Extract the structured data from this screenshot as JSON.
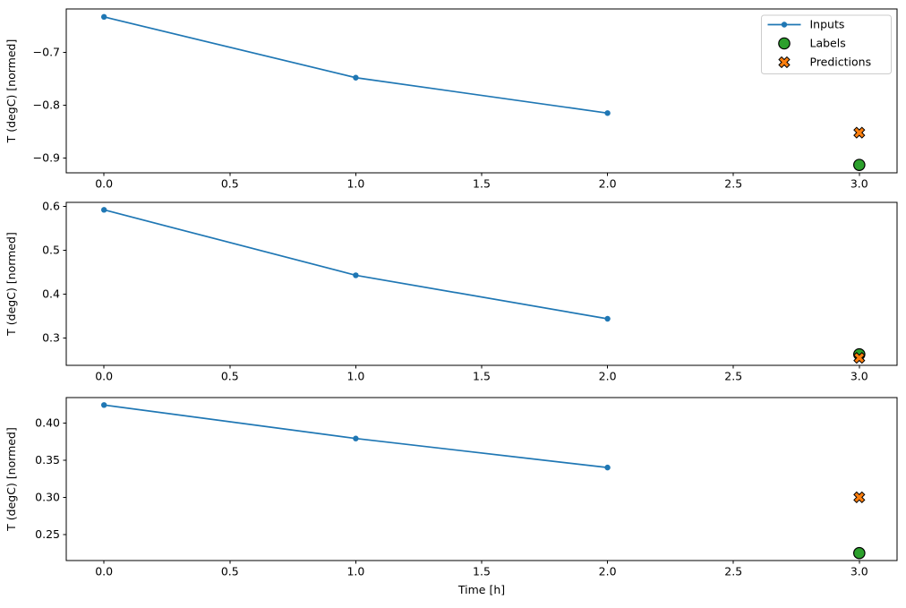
{
  "figure": {
    "xlabel": "Time [h]",
    "background": "#ffffff",
    "colors": {
      "inputs": "#1f77b4",
      "labels_fill": "#2ca02c",
      "predictions_fill": "#ff7f0e",
      "marker_edge": "#000000",
      "axis": "#000000",
      "legend_edge": "#cccccc",
      "legend_fill": "#ffffff"
    },
    "legend": {
      "position": "upper-right",
      "entries": [
        {
          "label": "Inputs",
          "marker": "line-dot"
        },
        {
          "label": "Labels",
          "marker": "circle"
        },
        {
          "label": "Predictions",
          "marker": "x"
        }
      ]
    }
  },
  "chart_data": [
    {
      "type": "line",
      "ylabel": "T (degC) [normed]",
      "xlim": [
        -0.15,
        3.15
      ],
      "ylim": [
        -0.928,
        -0.618
      ],
      "xticks": {
        "values": [
          0.0,
          0.5,
          1.0,
          1.5,
          2.0,
          2.5,
          3.0
        ],
        "labels": [
          "0.0",
          "0.5",
          "1.0",
          "1.5",
          "2.0",
          "2.5",
          "3.0"
        ]
      },
      "yticks": {
        "values": [
          -0.7,
          -0.8,
          -0.9
        ],
        "labels": [
          "−0.7",
          "−0.8",
          "−0.9"
        ]
      },
      "series": [
        {
          "name": "Inputs",
          "kind": "line-dot",
          "x": [
            0,
            1,
            2
          ],
          "y": [
            -0.633,
            -0.748,
            -0.815
          ]
        },
        {
          "name": "Labels",
          "kind": "circle",
          "x": [
            3
          ],
          "y": [
            -0.913
          ]
        },
        {
          "name": "Predictions",
          "kind": "x",
          "x": [
            3
          ],
          "y": [
            -0.852
          ]
        }
      ],
      "show_legend": true,
      "show_xlabel": false
    },
    {
      "type": "line",
      "ylabel": "T (degC) [normed]",
      "xlim": [
        -0.15,
        3.15
      ],
      "ylim": [
        0.238,
        0.609
      ],
      "xticks": {
        "values": [
          0.0,
          0.5,
          1.0,
          1.5,
          2.0,
          2.5,
          3.0
        ],
        "labels": [
          "0.0",
          "0.5",
          "1.0",
          "1.5",
          "2.0",
          "2.5",
          "3.0"
        ]
      },
      "yticks": {
        "values": [
          0.3,
          0.4,
          0.5,
          0.6
        ],
        "labels": [
          "0.3",
          "0.4",
          "0.5",
          "0.6"
        ]
      },
      "series": [
        {
          "name": "Inputs",
          "kind": "line-dot",
          "x": [
            0,
            1,
            2
          ],
          "y": [
            0.592,
            0.443,
            0.344
          ]
        },
        {
          "name": "Labels",
          "kind": "circle",
          "x": [
            3
          ],
          "y": [
            0.263
          ]
        },
        {
          "name": "Predictions",
          "kind": "x",
          "x": [
            3
          ],
          "y": [
            0.255
          ]
        }
      ],
      "show_legend": false,
      "show_xlabel": false
    },
    {
      "type": "line",
      "ylabel": "T (degC) [normed]",
      "xlim": [
        -0.15,
        3.15
      ],
      "ylim": [
        0.215,
        0.434
      ],
      "xticks": {
        "values": [
          0.0,
          0.5,
          1.0,
          1.5,
          2.0,
          2.5,
          3.0
        ],
        "labels": [
          "0.0",
          "0.5",
          "1.0",
          "1.5",
          "2.0",
          "2.5",
          "3.0"
        ]
      },
      "yticks": {
        "values": [
          0.25,
          0.3,
          0.35,
          0.4
        ],
        "labels": [
          "0.25",
          "0.30",
          "0.35",
          "0.40"
        ]
      },
      "series": [
        {
          "name": "Inputs",
          "kind": "line-dot",
          "x": [
            0,
            1,
            2
          ],
          "y": [
            0.424,
            0.379,
            0.34
          ]
        },
        {
          "name": "Labels",
          "kind": "circle",
          "x": [
            3
          ],
          "y": [
            0.225
          ]
        },
        {
          "name": "Predictions",
          "kind": "x",
          "x": [
            3
          ],
          "y": [
            0.3
          ]
        }
      ],
      "show_legend": false,
      "show_xlabel": true
    }
  ]
}
